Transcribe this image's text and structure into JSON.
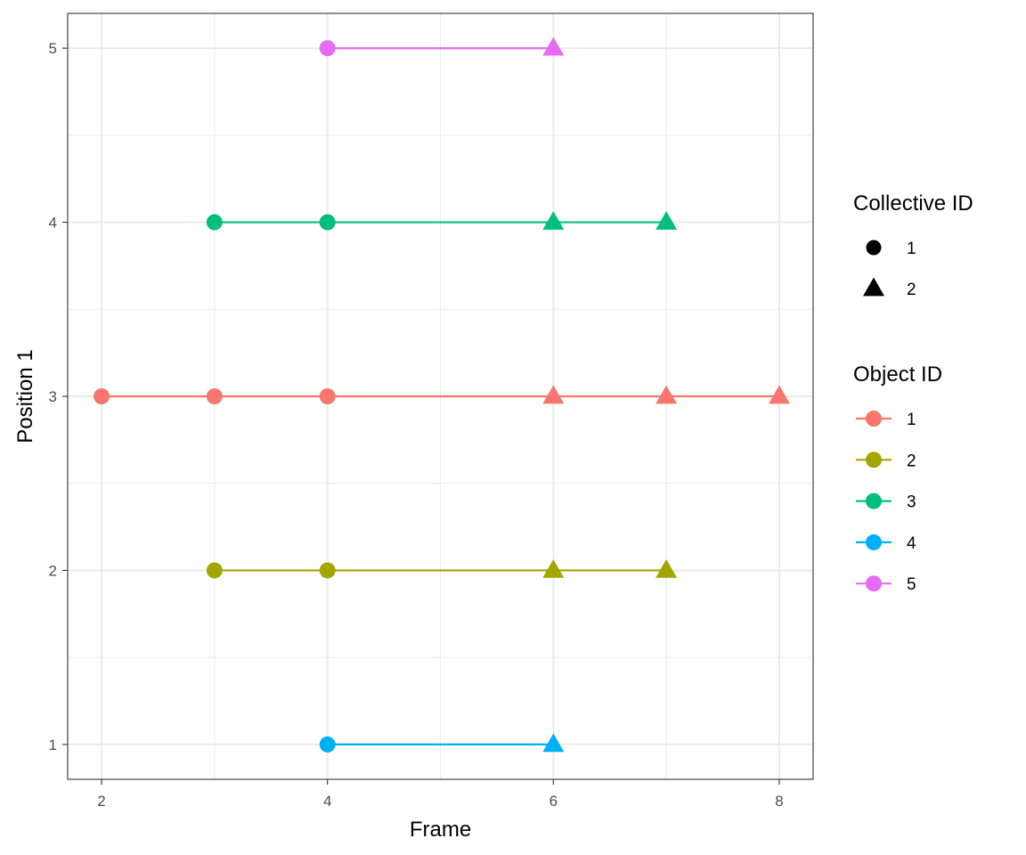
{
  "chart_data": {
    "type": "scatter",
    "xlabel": "Frame",
    "ylabel": "Position 1",
    "xlim": [
      1.7,
      8.3
    ],
    "ylim": [
      0.8,
      5.2
    ],
    "x_ticks": [
      "2",
      "4",
      "6",
      "8"
    ],
    "y_ticks": [
      "1",
      "2",
      "3",
      "4",
      "5"
    ],
    "grid": true,
    "legend_position": "right",
    "series": [
      {
        "name": "1",
        "color": "#F8766D",
        "points": [
          {
            "x": 2,
            "y": 3,
            "collective": "1"
          },
          {
            "x": 3,
            "y": 3,
            "collective": "1"
          },
          {
            "x": 4,
            "y": 3,
            "collective": "1"
          },
          {
            "x": 6,
            "y": 3,
            "collective": "2"
          },
          {
            "x": 7,
            "y": 3,
            "collective": "2"
          },
          {
            "x": 8,
            "y": 3,
            "collective": "2"
          }
        ]
      },
      {
        "name": "2",
        "color": "#A3A500",
        "points": [
          {
            "x": 3,
            "y": 2,
            "collective": "1"
          },
          {
            "x": 4,
            "y": 2,
            "collective": "1"
          },
          {
            "x": 6,
            "y": 2,
            "collective": "2"
          },
          {
            "x": 7,
            "y": 2,
            "collective": "2"
          }
        ]
      },
      {
        "name": "3",
        "color": "#00BF7D",
        "points": [
          {
            "x": 3,
            "y": 4,
            "collective": "1"
          },
          {
            "x": 4,
            "y": 4,
            "collective": "1"
          },
          {
            "x": 6,
            "y": 4,
            "collective": "2"
          },
          {
            "x": 7,
            "y": 4,
            "collective": "2"
          }
        ]
      },
      {
        "name": "4",
        "color": "#00B0F6",
        "points": [
          {
            "x": 4,
            "y": 1,
            "collective": "1"
          },
          {
            "x": 6,
            "y": 1,
            "collective": "2"
          }
        ]
      },
      {
        "name": "5",
        "color": "#E76BF3",
        "points": [
          {
            "x": 4,
            "y": 5,
            "collective": "1"
          },
          {
            "x": 6,
            "y": 5,
            "collective": "2"
          }
        ]
      }
    ],
    "legends": {
      "shape": {
        "title": "Collective ID",
        "entries": [
          {
            "label": "1",
            "shape": "circle"
          },
          {
            "label": "2",
            "shape": "triangle"
          }
        ]
      },
      "color": {
        "title": "Object ID",
        "entries": [
          {
            "label": "1",
            "color": "#F8766D"
          },
          {
            "label": "2",
            "color": "#A3A500"
          },
          {
            "label": "3",
            "color": "#00BF7D"
          },
          {
            "label": "4",
            "color": "#00B0F6"
          },
          {
            "label": "5",
            "color": "#E76BF3"
          }
        ]
      }
    }
  }
}
